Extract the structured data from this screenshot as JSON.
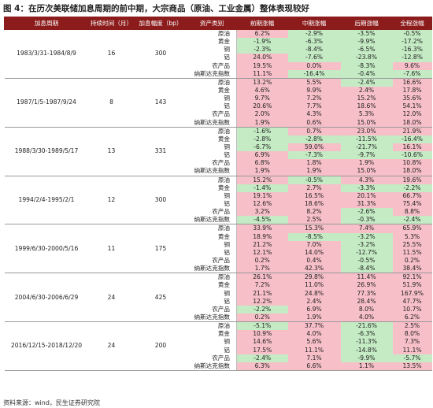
{
  "title": "图 4：在历次美联储加息周期的前中期，大宗商品（原油、工业金属）整体表现较好",
  "table": {
    "header": [
      "加息周期",
      "持续时间（月）",
      "加息幅度（bp）",
      "资产类别",
      "前期涨幅",
      "中期涨幅",
      "后期涨幅",
      "全程涨幅"
    ],
    "groups": [
      {
        "period": "1983/3/31-1984/8/9",
        "months": "16",
        "bp": "300",
        "rows": [
          [
            "原油",
            "6.2%",
            "-2.9%",
            "-3.5%",
            "-0.5%"
          ],
          [
            "黄金",
            "-1.9%",
            "-6.3%",
            "-9.9%",
            "-17.2%"
          ],
          [
            "铜",
            "-2.3%",
            "-8.4%",
            "-6.5%",
            "-16.3%"
          ],
          [
            "铝",
            "24.0%",
            "-7.6%",
            "-23.8%",
            "-12.8%"
          ],
          [
            "农产品",
            "19.5%",
            "0.0%",
            "-8.3%",
            "9.6%"
          ],
          [
            "纳斯达克指数",
            "11.1%",
            "-16.4%",
            "-0.4%",
            "-7.6%"
          ]
        ]
      },
      {
        "period": "1987/1/5-1987/9/24",
        "months": "8",
        "bp": "143",
        "rows": [
          [
            "原油",
            "13.2%",
            "5.5%",
            "-2.4%",
            "16.6%"
          ],
          [
            "黄金",
            "4.6%",
            "9.9%",
            "2.4%",
            "17.8%"
          ],
          [
            "铜",
            "9.7%",
            "7.2%",
            "15.2%",
            "35.6%"
          ],
          [
            "铝",
            "20.6%",
            "7.7%",
            "18.6%",
            "54.1%"
          ],
          [
            "农产品",
            "2.0%",
            "4.3%",
            "5.3%",
            "12.0%"
          ],
          [
            "纳斯达克指数",
            "1.9%",
            "0.6%",
            "15.0%",
            "18.0%"
          ]
        ]
      },
      {
        "period": "1988/3/30-1989/5/17",
        "months": "13",
        "bp": "331",
        "rows": [
          [
            "原油",
            "-1.6%",
            "0.7%",
            "23.0%",
            "21.9%"
          ],
          [
            "黄金",
            "-2.8%",
            "-2.8%",
            "-11.5%",
            "-16.4%"
          ],
          [
            "铜",
            "-6.7%",
            "59.0%",
            "-21.7%",
            "16.1%"
          ],
          [
            "铝",
            "6.9%",
            "-7.3%",
            "-9.7%",
            "-10.6%"
          ],
          [
            "农产品",
            "6.8%",
            "1.8%",
            "1.9%",
            "10.8%"
          ],
          [
            "纳斯达克指数",
            "1.9%",
            "1.9%",
            "15.0%",
            "18.0%"
          ]
        ]
      },
      {
        "period": "1994/2/4-1995/2/1",
        "months": "12",
        "bp": "300",
        "rows": [
          [
            "原油",
            "15.2%",
            "-0.5%",
            "4.3%",
            "19.6%"
          ],
          [
            "黄金",
            "-1.4%",
            "2.7%",
            "-3.3%",
            "-2.2%"
          ],
          [
            "铜",
            "19.1%",
            "16.5%",
            "20.1%",
            "66.7%"
          ],
          [
            "铝",
            "12.6%",
            "18.6%",
            "31.3%",
            "75.4%"
          ],
          [
            "农产品",
            "3.2%",
            "8.2%",
            "-2.6%",
            "8.8%"
          ],
          [
            "纳斯达克指数",
            "-4.5%",
            "2.5%",
            "-0.3%",
            "-2.4%"
          ]
        ]
      },
      {
        "period": "1999/6/30-2000/5/16",
        "months": "11",
        "bp": "175",
        "rows": [
          [
            "原油",
            "33.9%",
            "15.3%",
            "7.4%",
            "65.9%"
          ],
          [
            "黄金",
            "18.9%",
            "-8.5%",
            "-3.2%",
            "5.3%"
          ],
          [
            "铜",
            "21.2%",
            "7.0%",
            "-3.2%",
            "25.5%"
          ],
          [
            "铝",
            "12.1%",
            "14.0%",
            "-12.7%",
            "11.5%"
          ],
          [
            "农产品",
            "0.2%",
            "0.4%",
            "-0.5%",
            "0.2%"
          ],
          [
            "纳斯达克指数",
            "1.7%",
            "42.3%",
            "-8.4%",
            "38.4%"
          ]
        ]
      },
      {
        "period": "2004/6/30-2006/6/29",
        "months": "24",
        "bp": "425",
        "rows": [
          [
            "原油",
            "26.1%",
            "29.8%",
            "11.4%",
            "92.1%"
          ],
          [
            "黄金",
            "7.2%",
            "11.0%",
            "26.9%",
            "51.9%"
          ],
          [
            "铜",
            "21.1%",
            "24.8%",
            "77.3%",
            "167.9%"
          ],
          [
            "铝",
            "12.2%",
            "2.4%",
            "28.4%",
            "47.7%"
          ],
          [
            "农产品",
            "-2.2%",
            "6.9%",
            "8.0%",
            "10.7%"
          ],
          [
            "纳斯达克指数",
            "0.2%",
            "1.9%",
            "4.0%",
            "6.2%"
          ]
        ]
      },
      {
        "period": "2016/12/15-2018/12/20",
        "months": "24",
        "bp": "200",
        "rows": [
          [
            "原油",
            "-5.1%",
            "37.7%",
            "-21.6%",
            "2.5%"
          ],
          [
            "黄金",
            "10.9%",
            "4.0%",
            "-6.3%",
            "8.0%"
          ],
          [
            "铜",
            "14.6%",
            "5.6%",
            "-11.3%",
            "7.3%"
          ],
          [
            "铝",
            "17.5%",
            "11.1%",
            "-14.8%",
            "11.1%"
          ],
          [
            "农产品",
            "-2.4%",
            "7.1%",
            "-9.9%",
            "-5.7%"
          ],
          [
            "纳斯达克指数",
            "6.3%",
            "6.6%",
            "1.1%",
            "13.5%"
          ]
        ]
      }
    ]
  },
  "source": "资料来源：wind，民生证券研究院"
}
